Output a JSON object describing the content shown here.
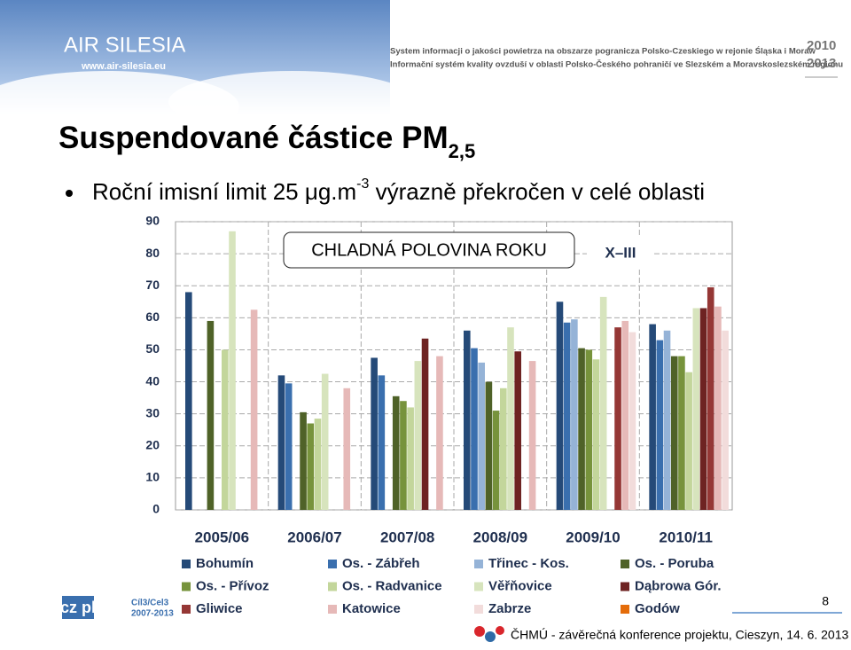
{
  "header": {
    "logo": "AIR SILESIA",
    "url": "www.air-silesia.eu",
    "line_pl": "System informacji o jakości powietrza na obszarze pogranicza Polsko-Czeskiego w rejonie Śląska i Moraw",
    "line_cz": "Informační systém kvality ovzduší v oblasti Polsko-Českého pohraničí ve Slezském a Moravskoslezském regionu",
    "year_from": "2010",
    "year_to": "2013"
  },
  "slide": {
    "title": "Suspendované částice PM",
    "title_sub": "2,5",
    "bullet_a": "Roční imisní limit 25 μg.m",
    "bullet_sup": "-3",
    "bullet_b": " výrazně překročen v celé oblasti",
    "page_number": "8",
    "footer": "ČHMÚ - závěrečná konference projektu, Cieszyn, 14. 6. 2013",
    "program_logo": "cz pl",
    "program_name": "Cíl3/Cel3",
    "program_years": "2007-2013"
  },
  "chart_data": {
    "type": "bar",
    "annotations": [
      "CHLADNÁ POLOVINA ROKU",
      "X–III"
    ],
    "categories": [
      "2005/06",
      "2006/07",
      "2007/08",
      "2008/09",
      "2009/10",
      "2010/11"
    ],
    "ylim": [
      0,
      90
    ],
    "yticks": [
      0,
      10,
      20,
      30,
      40,
      50,
      60,
      70,
      80,
      90
    ],
    "grid": true,
    "series": [
      {
        "name": "Bohumín",
        "color": "#254a78",
        "values": [
          68,
          42,
          47.5,
          56,
          65,
          58
        ]
      },
      {
        "name": "Os. - Zábřeh",
        "color": "#3a6fae",
        "values": [
          null,
          39.5,
          42,
          50.5,
          58.5,
          53
        ]
      },
      {
        "name": "Třinec - Kos.",
        "color": "#95b3d7",
        "values": [
          null,
          null,
          null,
          46,
          59.5,
          56
        ]
      },
      {
        "name": "Os. - Poruba",
        "color": "#4f6228",
        "values": [
          59,
          30.5,
          35.5,
          40,
          50.5,
          48
        ]
      },
      {
        "name": "Os. - Přívoz",
        "color": "#77933c",
        "values": [
          null,
          27,
          34,
          31,
          50,
          48
        ]
      },
      {
        "name": "Os. - Radvanice",
        "color": "#c3d69b",
        "values": [
          50,
          28.5,
          32,
          38,
          47,
          43
        ]
      },
      {
        "name": "Věřňovice",
        "color": "#d7e4bd",
        "values": [
          87,
          42.5,
          46.5,
          57,
          66.5,
          63
        ]
      },
      {
        "name": "Dąbrowa Gór.",
        "color": "#6e2322",
        "values": [
          null,
          null,
          53.5,
          49.5,
          null,
          63
        ]
      },
      {
        "name": "Gliwice",
        "color": "#953735",
        "values": [
          null,
          null,
          null,
          null,
          57,
          69.5
        ]
      },
      {
        "name": "Katowice",
        "color": "#e6b9b8",
        "values": [
          62.5,
          38,
          48,
          46.5,
          59,
          63.5
        ]
      },
      {
        "name": "Zabrze",
        "color": "#f2dcdb",
        "values": [
          null,
          null,
          null,
          null,
          55.5,
          56
        ]
      },
      {
        "name": "Godów",
        "color": "#e46c0a",
        "values": [
          null,
          null,
          null,
          null,
          null,
          null
        ]
      }
    ]
  }
}
